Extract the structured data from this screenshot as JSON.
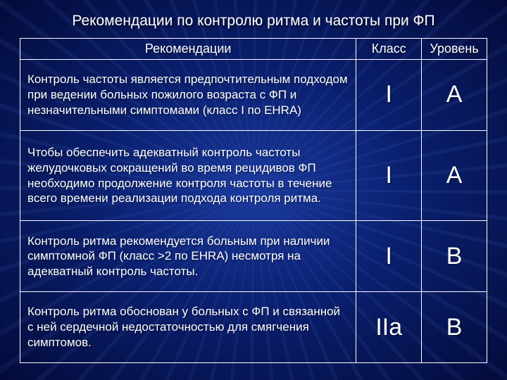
{
  "title": "Рекомендации по контролю ритма и частоты при ФП",
  "columns": [
    "Рекомендации",
    "Класс",
    "Уровень"
  ],
  "rows": [
    {
      "rec": "Контроль частоты является предпочтительным подходом при ведении больных пожилого возраста с ФП и  незначительными симптомами (класс I  по EHRA)",
      "class": "I",
      "level": "A"
    },
    {
      "rec": "Чтобы обеспечить адекватный контроль частоты желудочковых сокращений во время рецидивов ФП необходимо продолжение контроля частоты в течение всего времени реализации подхода контроля ритма.",
      "class": "I",
      "level": "A"
    },
    {
      "rec": "Контроль ритма рекомендуется больным при наличии симптомной ФП (класс >2 по EHRA) несмотря на адекватный контроль частоты.",
      "class": "I",
      "level": "B"
    },
    {
      "rec": "Контроль ритма обоснован у больных с ФП и связанной с ней сердечной недостаточностью для смягчения симптомов.",
      "class": "IIa",
      "level": "B"
    }
  ]
}
